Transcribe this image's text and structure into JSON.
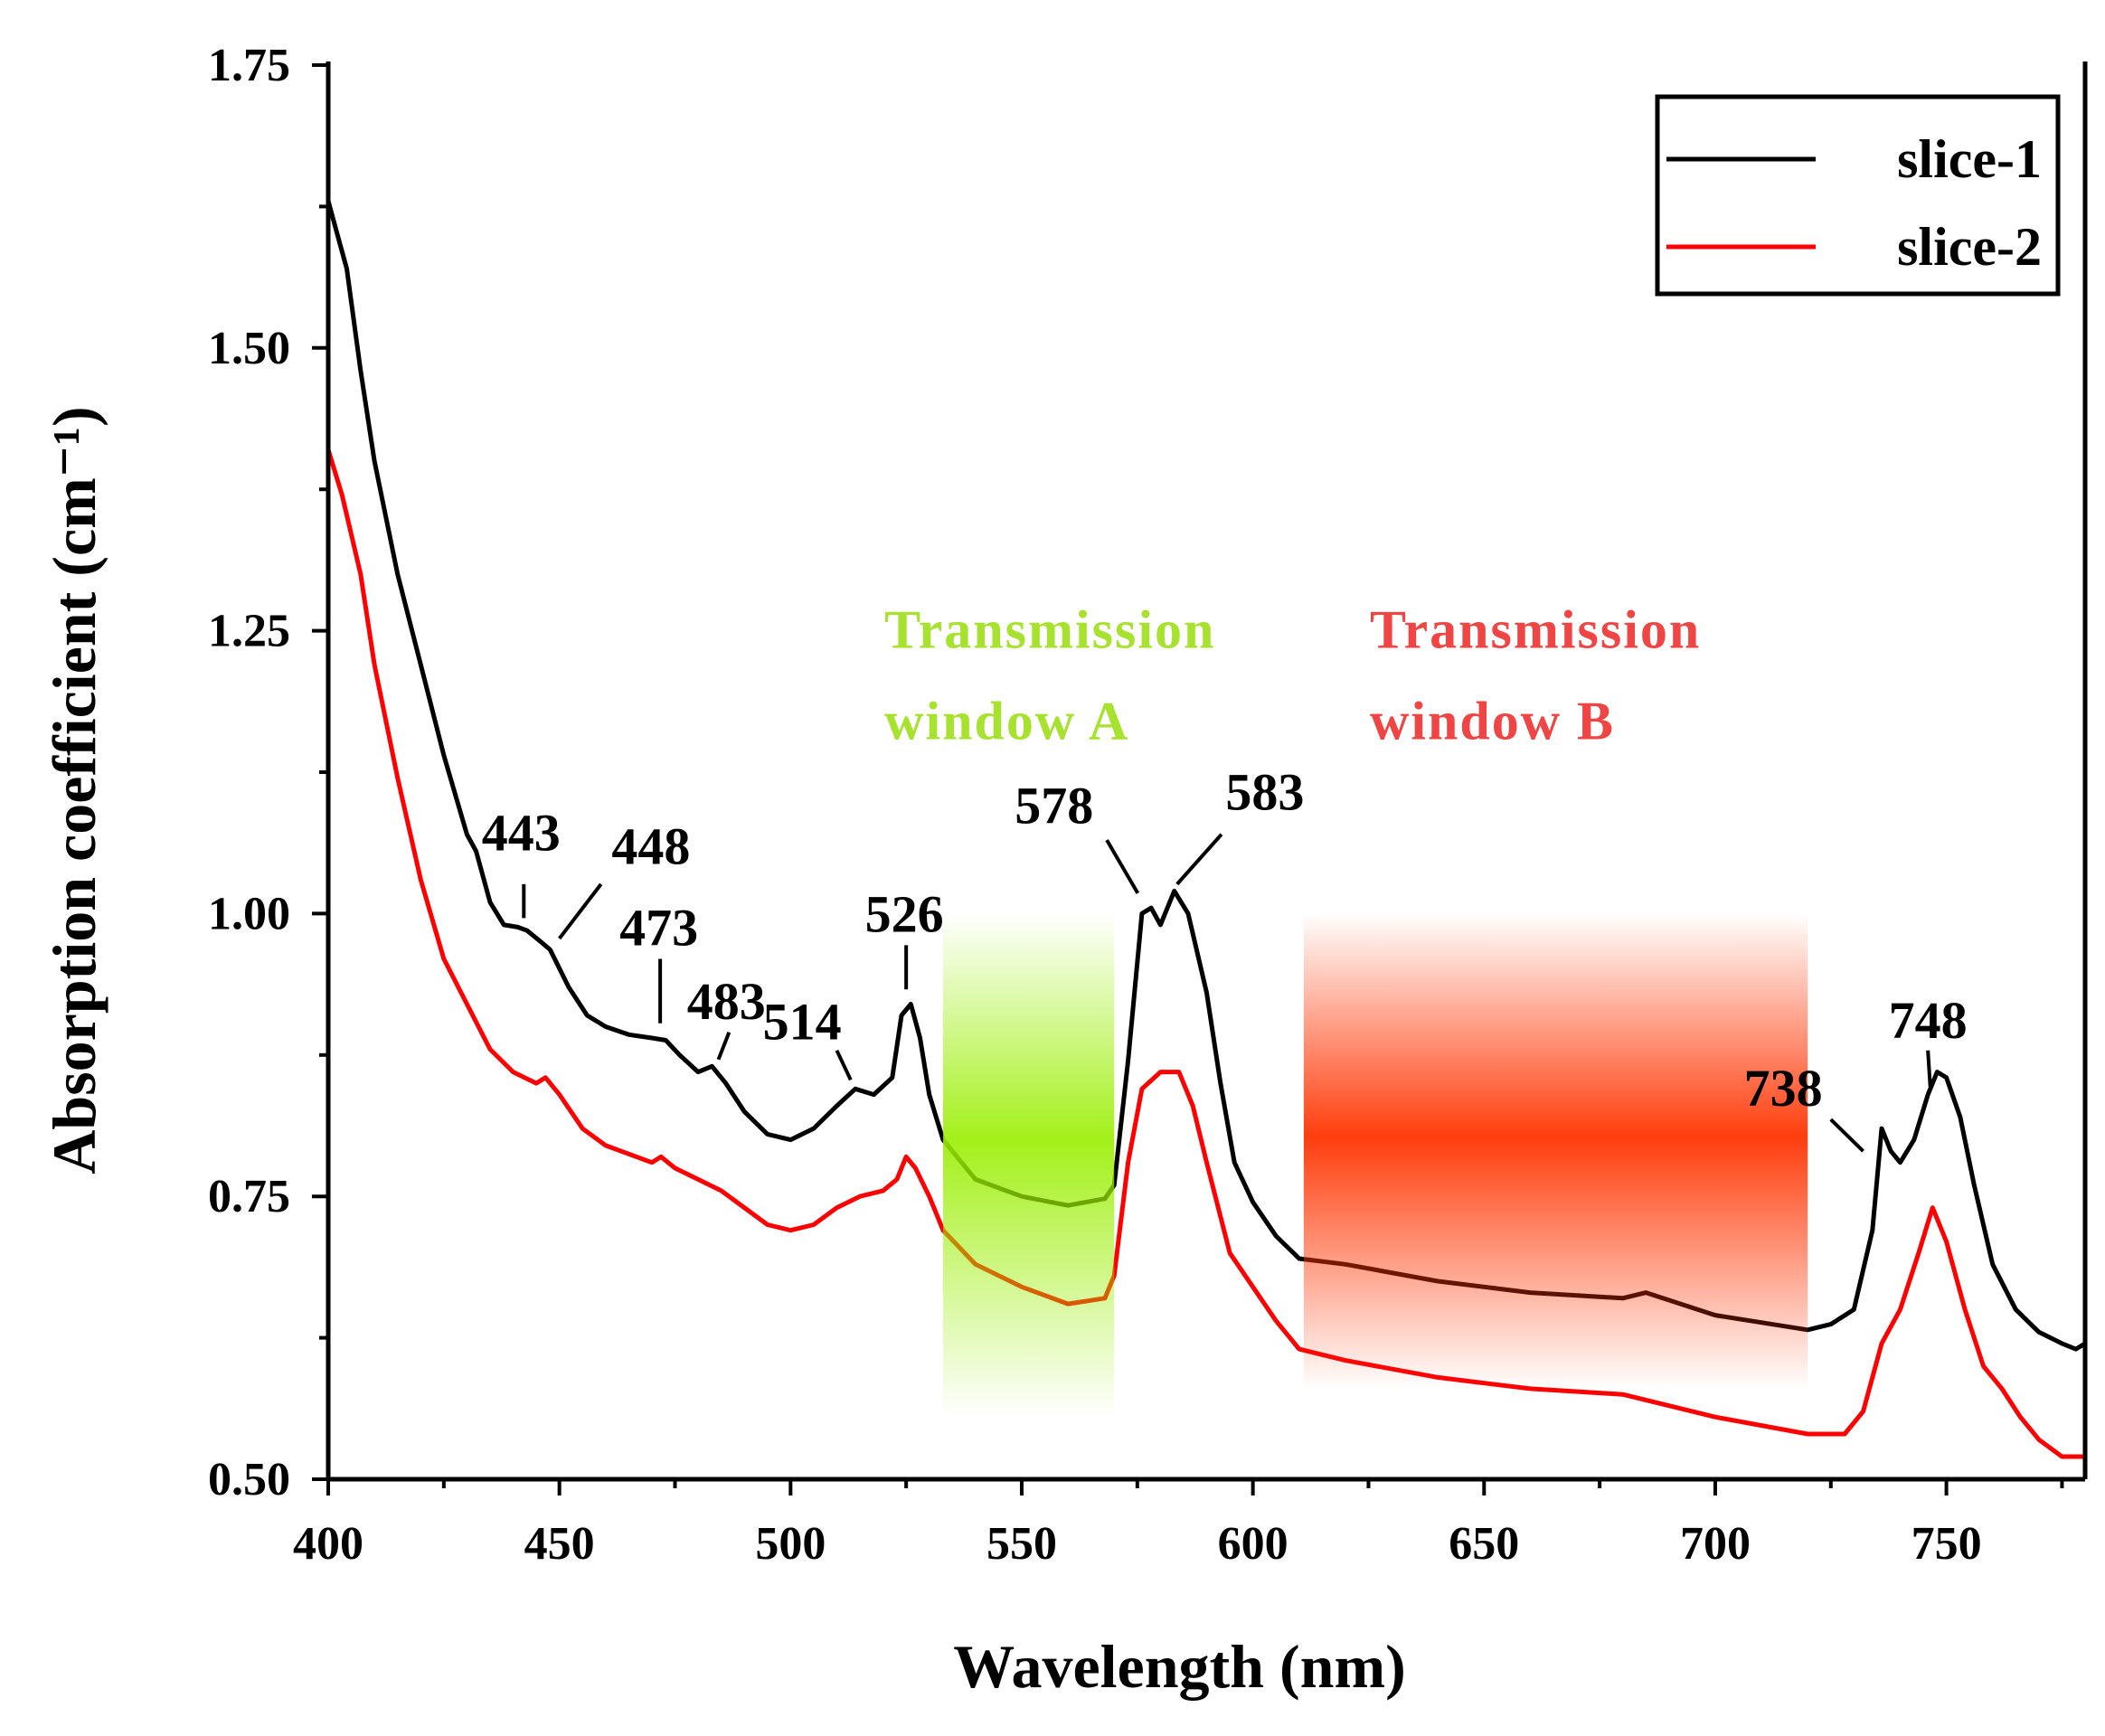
{
  "chart_data": {
    "type": "line",
    "title": "",
    "xlabel": "Wavelength (nm)",
    "ylabel": "Absorption coefficient (cm⁻¹)",
    "xlim": [
      400,
      780
    ],
    "ylim": [
      0.5,
      1.75
    ],
    "xticks": [
      400,
      450,
      500,
      550,
      600,
      650,
      700,
      750
    ],
    "xtick_labels": [
      "400",
      "450",
      "500",
      "550",
      "600",
      "650",
      "700",
      "750"
    ],
    "yticks": [
      0.5,
      0.75,
      1.0,
      1.25,
      1.5,
      1.75
    ],
    "ytick_labels": [
      "0.50",
      "0.75",
      "1.00",
      "1.25",
      "1.50",
      "1.75"
    ],
    "grid": false,
    "legend_placement": "top-right",
    "series": [
      {
        "name": "slice-1",
        "color": "#000000",
        "x": [
          400,
          402,
          404,
          407,
          410,
          415,
          420,
          425,
          430,
          432,
          435,
          438,
          441,
          443,
          446,
          448,
          452,
          456,
          460,
          465,
          470,
          473,
          476,
          480,
          483,
          486,
          490,
          495,
          500,
          505,
          510,
          514,
          518,
          522,
          524,
          526,
          528,
          530,
          533,
          540,
          550,
          560,
          568,
          570,
          573,
          576,
          578,
          580,
          583,
          586,
          590,
          593,
          596,
          600,
          605,
          610,
          620,
          640,
          660,
          680,
          685,
          700,
          720,
          725,
          730,
          734,
          736,
          738,
          740,
          743,
          746,
          748,
          750,
          753,
          756,
          760,
          765,
          770,
          775,
          778,
          780
        ],
        "y": [
          1.63,
          1.6,
          1.57,
          1.48,
          1.4,
          1.3,
          1.22,
          1.14,
          1.07,
          1.055,
          1.01,
          0.99,
          0.988,
          0.985,
          0.975,
          0.968,
          0.935,
          0.91,
          0.9,
          0.893,
          0.89,
          0.888,
          0.875,
          0.86,
          0.865,
          0.85,
          0.825,
          0.805,
          0.8,
          0.81,
          0.83,
          0.845,
          0.84,
          0.855,
          0.91,
          0.92,
          0.89,
          0.84,
          0.8,
          0.765,
          0.75,
          0.742,
          0.748,
          0.76,
          0.87,
          1.0,
          1.005,
          0.99,
          1.02,
          1.0,
          0.93,
          0.85,
          0.78,
          0.745,
          0.715,
          0.695,
          0.69,
          0.675,
          0.665,
          0.66,
          0.665,
          0.645,
          0.632,
          0.637,
          0.65,
          0.72,
          0.81,
          0.79,
          0.78,
          0.8,
          0.84,
          0.86,
          0.855,
          0.82,
          0.76,
          0.69,
          0.65,
          0.63,
          0.62,
          0.615,
          0.62
        ]
      },
      {
        "name": "slice-2",
        "color": "#ff0000",
        "x": [
          400,
          403,
          407,
          410,
          415,
          420,
          425,
          430,
          435,
          440,
          445,
          447,
          450,
          455,
          460,
          470,
          472,
          475,
          480,
          485,
          490,
          495,
          500,
          505,
          510,
          515,
          520,
          523,
          525,
          527,
          530,
          533,
          540,
          550,
          560,
          568,
          570,
          573,
          576,
          580,
          584,
          587,
          590,
          595,
          600,
          605,
          610,
          620,
          640,
          660,
          680,
          700,
          720,
          728,
          732,
          736,
          740,
          744,
          747,
          750,
          754,
          758,
          762,
          766,
          770,
          775,
          780
        ],
        "y": [
          1.41,
          1.37,
          1.3,
          1.22,
          1.12,
          1.03,
          0.96,
          0.92,
          0.88,
          0.86,
          0.85,
          0.855,
          0.84,
          0.81,
          0.795,
          0.78,
          0.785,
          0.775,
          0.765,
          0.755,
          0.74,
          0.725,
          0.72,
          0.725,
          0.74,
          0.75,
          0.755,
          0.765,
          0.785,
          0.775,
          0.75,
          0.72,
          0.69,
          0.67,
          0.655,
          0.66,
          0.68,
          0.78,
          0.845,
          0.86,
          0.86,
          0.83,
          0.78,
          0.7,
          0.67,
          0.64,
          0.615,
          0.605,
          0.59,
          0.58,
          0.575,
          0.555,
          0.54,
          0.54,
          0.56,
          0.62,
          0.65,
          0.7,
          0.74,
          0.71,
          0.65,
          0.6,
          0.58,
          0.555,
          0.535,
          0.52,
          0.52
        ]
      }
    ],
    "peak_annotations": [
      "443",
      "448",
      "473",
      "483",
      "514",
      "526",
      "578",
      "583",
      "738",
      "748"
    ],
    "windows": [
      {
        "label_line1": "Transmission",
        "label_line2": "window A",
        "x_range": [
          533,
          570
        ],
        "y_range": [
          0.555,
          1.0
        ],
        "color": "#99ee00"
      },
      {
        "label_line1": "Transmission",
        "label_line2": "window B",
        "x_range": [
          611,
          720
        ],
        "y_range": [
          0.58,
          1.0
        ],
        "color": "#ff3300"
      }
    ],
    "window_text_colors": [
      "#a6e22e",
      "#f04545"
    ]
  }
}
